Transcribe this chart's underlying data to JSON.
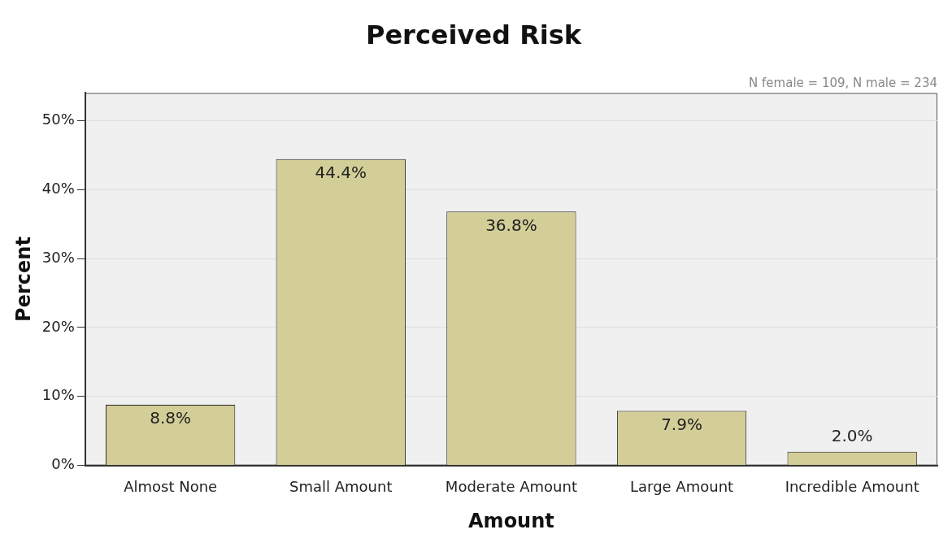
{
  "chart_data": {
    "type": "bar",
    "title": "Perceived Risk",
    "xlabel": "Amount",
    "ylabel": "Percent",
    "categories": [
      "Almost None",
      "Small Amount",
      "Moderate Amount",
      "Large Amount",
      "Incredible Amount"
    ],
    "values": [
      8.8,
      44.4,
      36.8,
      7.9,
      2.0
    ],
    "color": "#d3ce97",
    "value_labels": [
      "8.8%",
      "44.4%",
      "36.8%",
      "7.9%",
      "2.0%"
    ],
    "ylim": [
      0,
      54
    ],
    "yticks": [
      {
        "value": 0,
        "label": "0%"
      },
      {
        "value": 10,
        "label": "10%"
      },
      {
        "value": 20,
        "label": "20%"
      },
      {
        "value": 30,
        "label": "30%"
      },
      {
        "value": 40,
        "label": "40%"
      },
      {
        "value": 50,
        "label": "50%"
      }
    ],
    "grid": "y",
    "legend": false,
    "annotations": [
      "N female = 109, N male = 234"
    ]
  }
}
